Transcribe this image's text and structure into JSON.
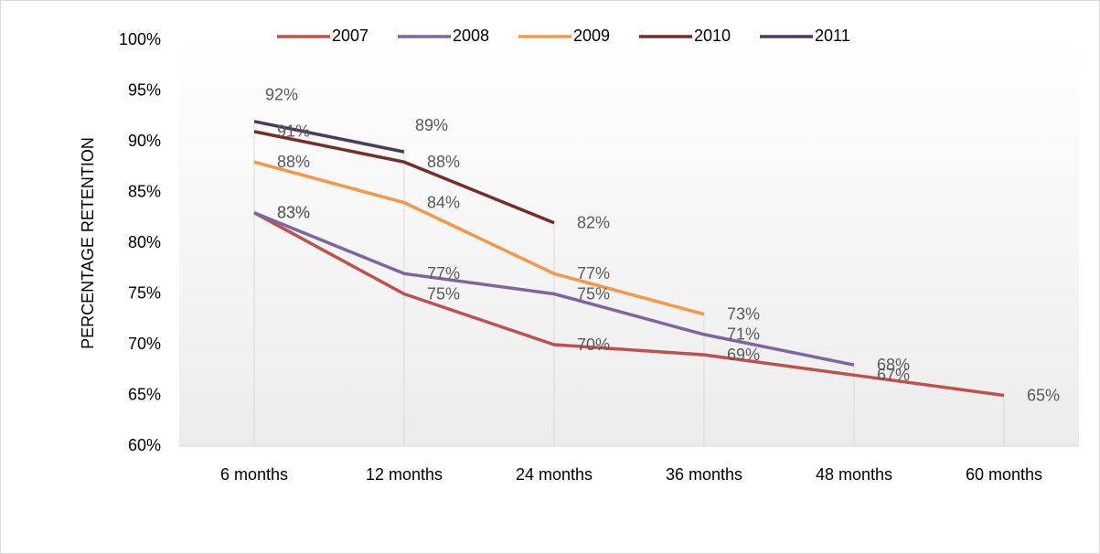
{
  "chart_data": {
    "type": "line",
    "y_label": "PERCENTAGE RETENTION",
    "categories": [
      "6 months",
      "12 months",
      "24 months",
      "36 months",
      "48 months",
      "60 months"
    ],
    "series": [
      {
        "name": "2007",
        "color": "#c0504d",
        "values": [
          83,
          75,
          70,
          69,
          67,
          65
        ],
        "value_labels": [
          "83%",
          "75%",
          "70%",
          "69%",
          "67%",
          "65%"
        ]
      },
      {
        "name": "2008",
        "color": "#8064a2",
        "values": [
          83,
          77,
          75,
          71,
          68,
          null
        ],
        "value_labels": [
          "83%",
          "77%",
          "75%",
          "71%",
          "68%",
          null
        ]
      },
      {
        "name": "2009",
        "color": "#f79646",
        "values": [
          88,
          84,
          77,
          73,
          null,
          null
        ],
        "value_labels": [
          "88%",
          "84%",
          "77%",
          "73%",
          null,
          null
        ]
      },
      {
        "name": "2010",
        "color": "#772c2a",
        "values": [
          91,
          88,
          82,
          null,
          null,
          null
        ],
        "value_labels": [
          "91%",
          "88%",
          "82%",
          null,
          null,
          null
        ]
      },
      {
        "name": "2011",
        "color": "#4b3a5b",
        "values": [
          92,
          89,
          null,
          null,
          null,
          null
        ],
        "value_labels": [
          "92%",
          "89%",
          null,
          null,
          null,
          null
        ]
      }
    ],
    "ylim": [
      60,
      100
    ],
    "yticks": [
      {
        "value": 60,
        "label": "60%"
      },
      {
        "value": 65,
        "label": "65%"
      },
      {
        "value": 70,
        "label": "70%"
      },
      {
        "value": 75,
        "label": "75%"
      },
      {
        "value": 80,
        "label": "80%"
      },
      {
        "value": 85,
        "label": "85%"
      },
      {
        "value": 90,
        "label": "90%"
      },
      {
        "value": 95,
        "label": "95%"
      },
      {
        "value": 100,
        "label": "100%"
      }
    ],
    "legend": "top"
  }
}
